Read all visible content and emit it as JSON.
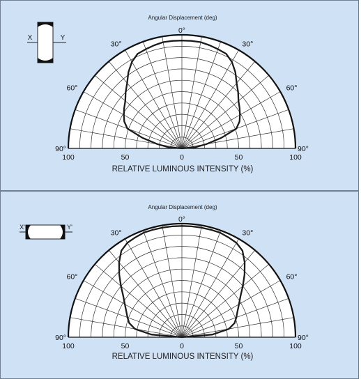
{
  "chart_data": [
    {
      "type": "polar",
      "title": "Angular Displacement (deg)",
      "xlabel": "RELATIVE LUMINOUS INTENSITY  (%)",
      "angle_tick_labels": [
        "90°",
        "60°",
        "30°",
        "0°",
        "30°",
        "60°",
        "90°"
      ],
      "radius_tick_labels": [
        "100",
        "50",
        "0",
        "50",
        "100"
      ],
      "rlim": [
        0,
        100
      ],
      "angle_range_deg": [
        -90,
        90
      ],
      "grid": true,
      "inset": {
        "left_label": "X",
        "right_label": "Y",
        "orientation": "vertical"
      },
      "series": [
        {
          "angle_deg": [
            -90,
            -85,
            -80,
            -75,
            -70,
            -65,
            -60,
            -55,
            -50,
            -45,
            -40,
            -35,
            -30,
            -25,
            -20,
            -15,
            -10,
            -5,
            0,
            5,
            10,
            15,
            20,
            25,
            30,
            35,
            40,
            45,
            50,
            55,
            60,
            65,
            70,
            75,
            80,
            85,
            90
          ],
          "r": [
            0,
            12,
            22,
            36,
            51,
            56,
            59,
            62,
            65,
            70,
            75,
            82,
            88,
            92,
            93,
            94,
            95,
            95,
            95,
            95,
            95,
            94,
            93,
            92,
            88,
            82,
            75,
            70,
            65,
            62,
            59,
            56,
            51,
            36,
            22,
            12,
            0
          ]
        }
      ]
    },
    {
      "type": "polar",
      "title": "Angular Displacement (deg)",
      "xlabel": "RELATIVE LUMINOUS INTENSITY  (%)",
      "angle_tick_labels": [
        "90°",
        "60°",
        "30°",
        "0°",
        "30°",
        "60°",
        "90°"
      ],
      "radius_tick_labels": [
        "100",
        "50",
        "0",
        "50",
        "100"
      ],
      "rlim": [
        0,
        100
      ],
      "angle_range_deg": [
        -90,
        90
      ],
      "grid": true,
      "inset": {
        "left_label": "X'",
        "right_label": "Y'",
        "orientation": "horizontal"
      },
      "series": [
        {
          "angle_deg": [
            -90,
            -85,
            -80,
            -75,
            -70,
            -65,
            -60,
            -55,
            -50,
            -45,
            -40,
            -35,
            -30,
            -25,
            -20,
            -15,
            -10,
            -5,
            0,
            5,
            10,
            15,
            20,
            25,
            30,
            35,
            40,
            45,
            50,
            55,
            60,
            65,
            70,
            75,
            80,
            85,
            90
          ],
          "r": [
            0,
            27,
            42,
            48,
            51,
            54,
            58,
            63,
            70,
            78,
            86,
            93,
            96,
            97,
            98,
            98,
            98,
            98,
            98,
            98,
            98,
            98,
            98,
            97,
            96,
            93,
            86,
            78,
            70,
            63,
            58,
            54,
            51,
            48,
            42,
            27,
            0
          ]
        }
      ]
    }
  ]
}
